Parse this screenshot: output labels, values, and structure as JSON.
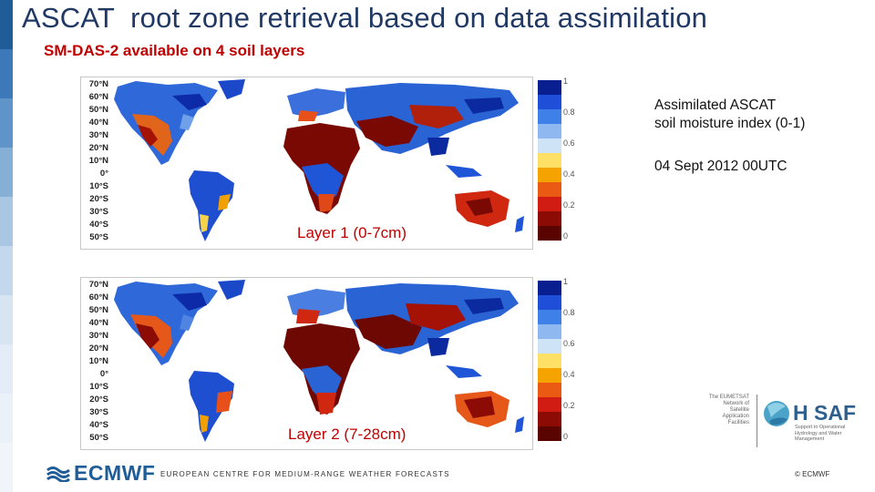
{
  "slide": {
    "title": "ASCAT  root zone retrieval based on data assimilation",
    "subtitle": "SM-DAS-2 available on 4 soil layers"
  },
  "maps": [
    {
      "layer_label": "Layer 1 (0-7cm)",
      "lat_labels": [
        "70°N",
        "60°N",
        "50°N",
        "40°N",
        "30°N",
        "20°N",
        "10°N",
        "0°",
        "10°S",
        "20°S",
        "30°S",
        "40°S",
        "50°S"
      ]
    },
    {
      "layer_label": "Layer 2 (7-28cm)",
      "lat_labels": [
        "70°N",
        "60°N",
        "50°N",
        "40°N",
        "30°N",
        "20°N",
        "10°N",
        "0°",
        "10°S",
        "20°S",
        "30°S",
        "40°S",
        "50°S"
      ]
    }
  ],
  "colorbar": {
    "tick_labels": [
      "1",
      "0.8",
      "0.6",
      "0.4",
      "0.2",
      "0"
    ],
    "colors": [
      "#0a1f8f",
      "#1f4fd8",
      "#3f7fe8",
      "#8fb8f0",
      "#cfe3f7",
      "#ffe066",
      "#f5a300",
      "#ea5a12",
      "#d01c12",
      "#8c0b05",
      "#5a0400"
    ]
  },
  "legend": {
    "line1": "Assimilated ASCAT",
    "line2": "soil moisture index (0-1)",
    "date": "04 Sept 2012 00UTC"
  },
  "footer": {
    "logo": "ECMWF",
    "center": "EUROPEAN CENTRE FOR MEDIUM-RANGE WEATHER FORECASTS",
    "right": "© ECMWF"
  },
  "hsaf": {
    "eumetsat_lines": [
      "The EUMETSAT",
      "Network of",
      "Satellite Application",
      "Facilities"
    ],
    "wordmark": "H SAF",
    "tagline": "Support to Operational Hydrology and Water Management"
  },
  "side_strip_colors": [
    "#1f5d99",
    "#3b79b8",
    "#5f94c8",
    "#86afd6",
    "#a9c6e3",
    "#c4d8ed",
    "#d7e4f2",
    "#e3ecf6",
    "#ebf1f8",
    "#f1f5fa"
  ]
}
